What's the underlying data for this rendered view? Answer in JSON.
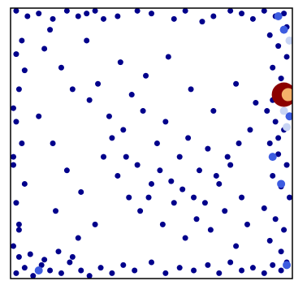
{
  "chart_data": {
    "type": "scatter",
    "xlim": [
      0,
      1
    ],
    "ylim": [
      0,
      1
    ],
    "series": [
      {
        "color": "#00008b",
        "size": 3.5,
        "x": [
          0.02,
          0.06,
          0.1,
          0.15,
          0.2,
          0.24,
          0.27,
          0.3,
          0.33,
          0.38,
          0.45,
          0.5,
          0.58,
          0.62,
          0.68,
          0.72,
          0.78,
          0.82,
          0.86,
          0.9,
          0.94,
          0.97,
          0.02,
          0.05,
          0.08,
          0.11,
          0.14,
          0.18,
          0.21,
          0.25,
          0.28,
          0.32,
          0.36,
          0.4,
          0.44,
          0.5,
          0.55,
          0.6,
          0.65,
          0.7,
          0.74,
          0.78,
          0.82,
          0.86,
          0.9,
          0.93,
          0.96,
          0.98,
          0.03,
          0.07,
          0.12,
          0.17,
          0.22,
          0.01,
          0.03,
          0.02,
          0.05,
          0.01,
          0.04,
          0.02,
          0.01,
          0.03,
          0.05,
          0.02,
          0.04,
          0.01,
          0.03,
          0.92,
          0.95,
          0.98,
          0.93,
          0.96,
          0.99,
          0.91,
          0.94,
          0.97,
          0.92,
          0.95,
          0.98,
          0.93,
          0.96,
          0.99,
          0.9,
          0.94,
          0.97,
          0.92,
          0.96,
          0.98,
          0.93,
          0.95,
          0.99,
          0.12,
          0.18,
          0.22,
          0.28,
          0.31,
          0.35,
          0.4,
          0.43,
          0.47,
          0.52,
          0.55,
          0.6,
          0.63,
          0.67,
          0.7,
          0.74,
          0.78,
          0.82,
          0.85,
          0.15,
          0.2,
          0.25,
          0.33,
          0.38,
          0.42,
          0.46,
          0.5,
          0.54,
          0.58,
          0.62,
          0.66,
          0.71,
          0.76,
          0.8,
          0.84,
          0.1,
          0.16,
          0.24,
          0.3,
          0.36,
          0.41,
          0.45,
          0.49,
          0.53,
          0.57,
          0.61,
          0.65,
          0.69,
          0.73,
          0.77,
          0.81,
          0.87,
          0.14,
          0.27,
          0.39,
          0.48,
          0.56,
          0.64,
          0.72,
          0.8
        ],
        "y": [
          0.99,
          0.97,
          0.98,
          0.96,
          0.99,
          0.97,
          0.98,
          0.99,
          0.96,
          0.97,
          0.99,
          0.98,
          0.96,
          0.99,
          0.95,
          0.97,
          0.99,
          0.98,
          0.96,
          0.99,
          0.97,
          0.98,
          0.02,
          0.04,
          0.01,
          0.05,
          0.03,
          0.02,
          0.06,
          0.03,
          0.01,
          0.04,
          0.02,
          0.05,
          0.03,
          0.06,
          0.02,
          0.04,
          0.03,
          0.05,
          0.02,
          0.06,
          0.03,
          0.04,
          0.02,
          0.05,
          0.03,
          0.06,
          0.08,
          0.09,
          0.07,
          0.1,
          0.08,
          0.12,
          0.2,
          0.28,
          0.35,
          0.42,
          0.5,
          0.58,
          0.63,
          0.7,
          0.77,
          0.83,
          0.88,
          0.45,
          0.18,
          0.9,
          0.86,
          0.82,
          0.78,
          0.74,
          0.7,
          0.62,
          0.58,
          0.55,
          0.5,
          0.46,
          0.42,
          0.38,
          0.34,
          0.3,
          0.26,
          0.22,
          0.18,
          0.14,
          0.1,
          0.93,
          0.66,
          0.52,
          0.88,
          0.85,
          0.78,
          0.7,
          0.66,
          0.72,
          0.6,
          0.55,
          0.68,
          0.62,
          0.5,
          0.58,
          0.45,
          0.52,
          0.4,
          0.48,
          0.35,
          0.42,
          0.3,
          0.55,
          0.5,
          0.4,
          0.32,
          0.45,
          0.38,
          0.3,
          0.25,
          0.35,
          0.2,
          0.28,
          0.15,
          0.22,
          0.18,
          0.25,
          0.12,
          0.2,
          0.6,
          0.25,
          0.15,
          0.2,
          0.52,
          0.45,
          0.42,
          0.3,
          0.4,
          0.36,
          0.33,
          0.3,
          0.28,
          0.38,
          0.45,
          0.5,
          0.65,
          0.92,
          0.88,
          0.8,
          0.75,
          0.82,
          0.7,
          0.62,
          0.72
        ]
      },
      {
        "color": "#3d5ce0",
        "size": 5,
        "x": [
          0.95,
          0.97,
          0.99,
          0.93,
          0.98,
          0.1,
          0.96
        ],
        "y": [
          0.97,
          0.92,
          0.6,
          0.45,
          0.05,
          0.03,
          0.35
        ]
      },
      {
        "color": "#c8d4f4",
        "size": 5,
        "x": [
          0.99,
          0.97,
          0.98
        ],
        "y": [
          0.88,
          0.62,
          0.56
        ]
      },
      {
        "color": "#8b0000",
        "size": 15,
        "x": [
          0.97
        ],
        "y": [
          0.68
        ]
      },
      {
        "color": "#f4b06a",
        "size": 8,
        "x": [
          0.985
        ],
        "y": [
          0.68
        ]
      }
    ]
  }
}
